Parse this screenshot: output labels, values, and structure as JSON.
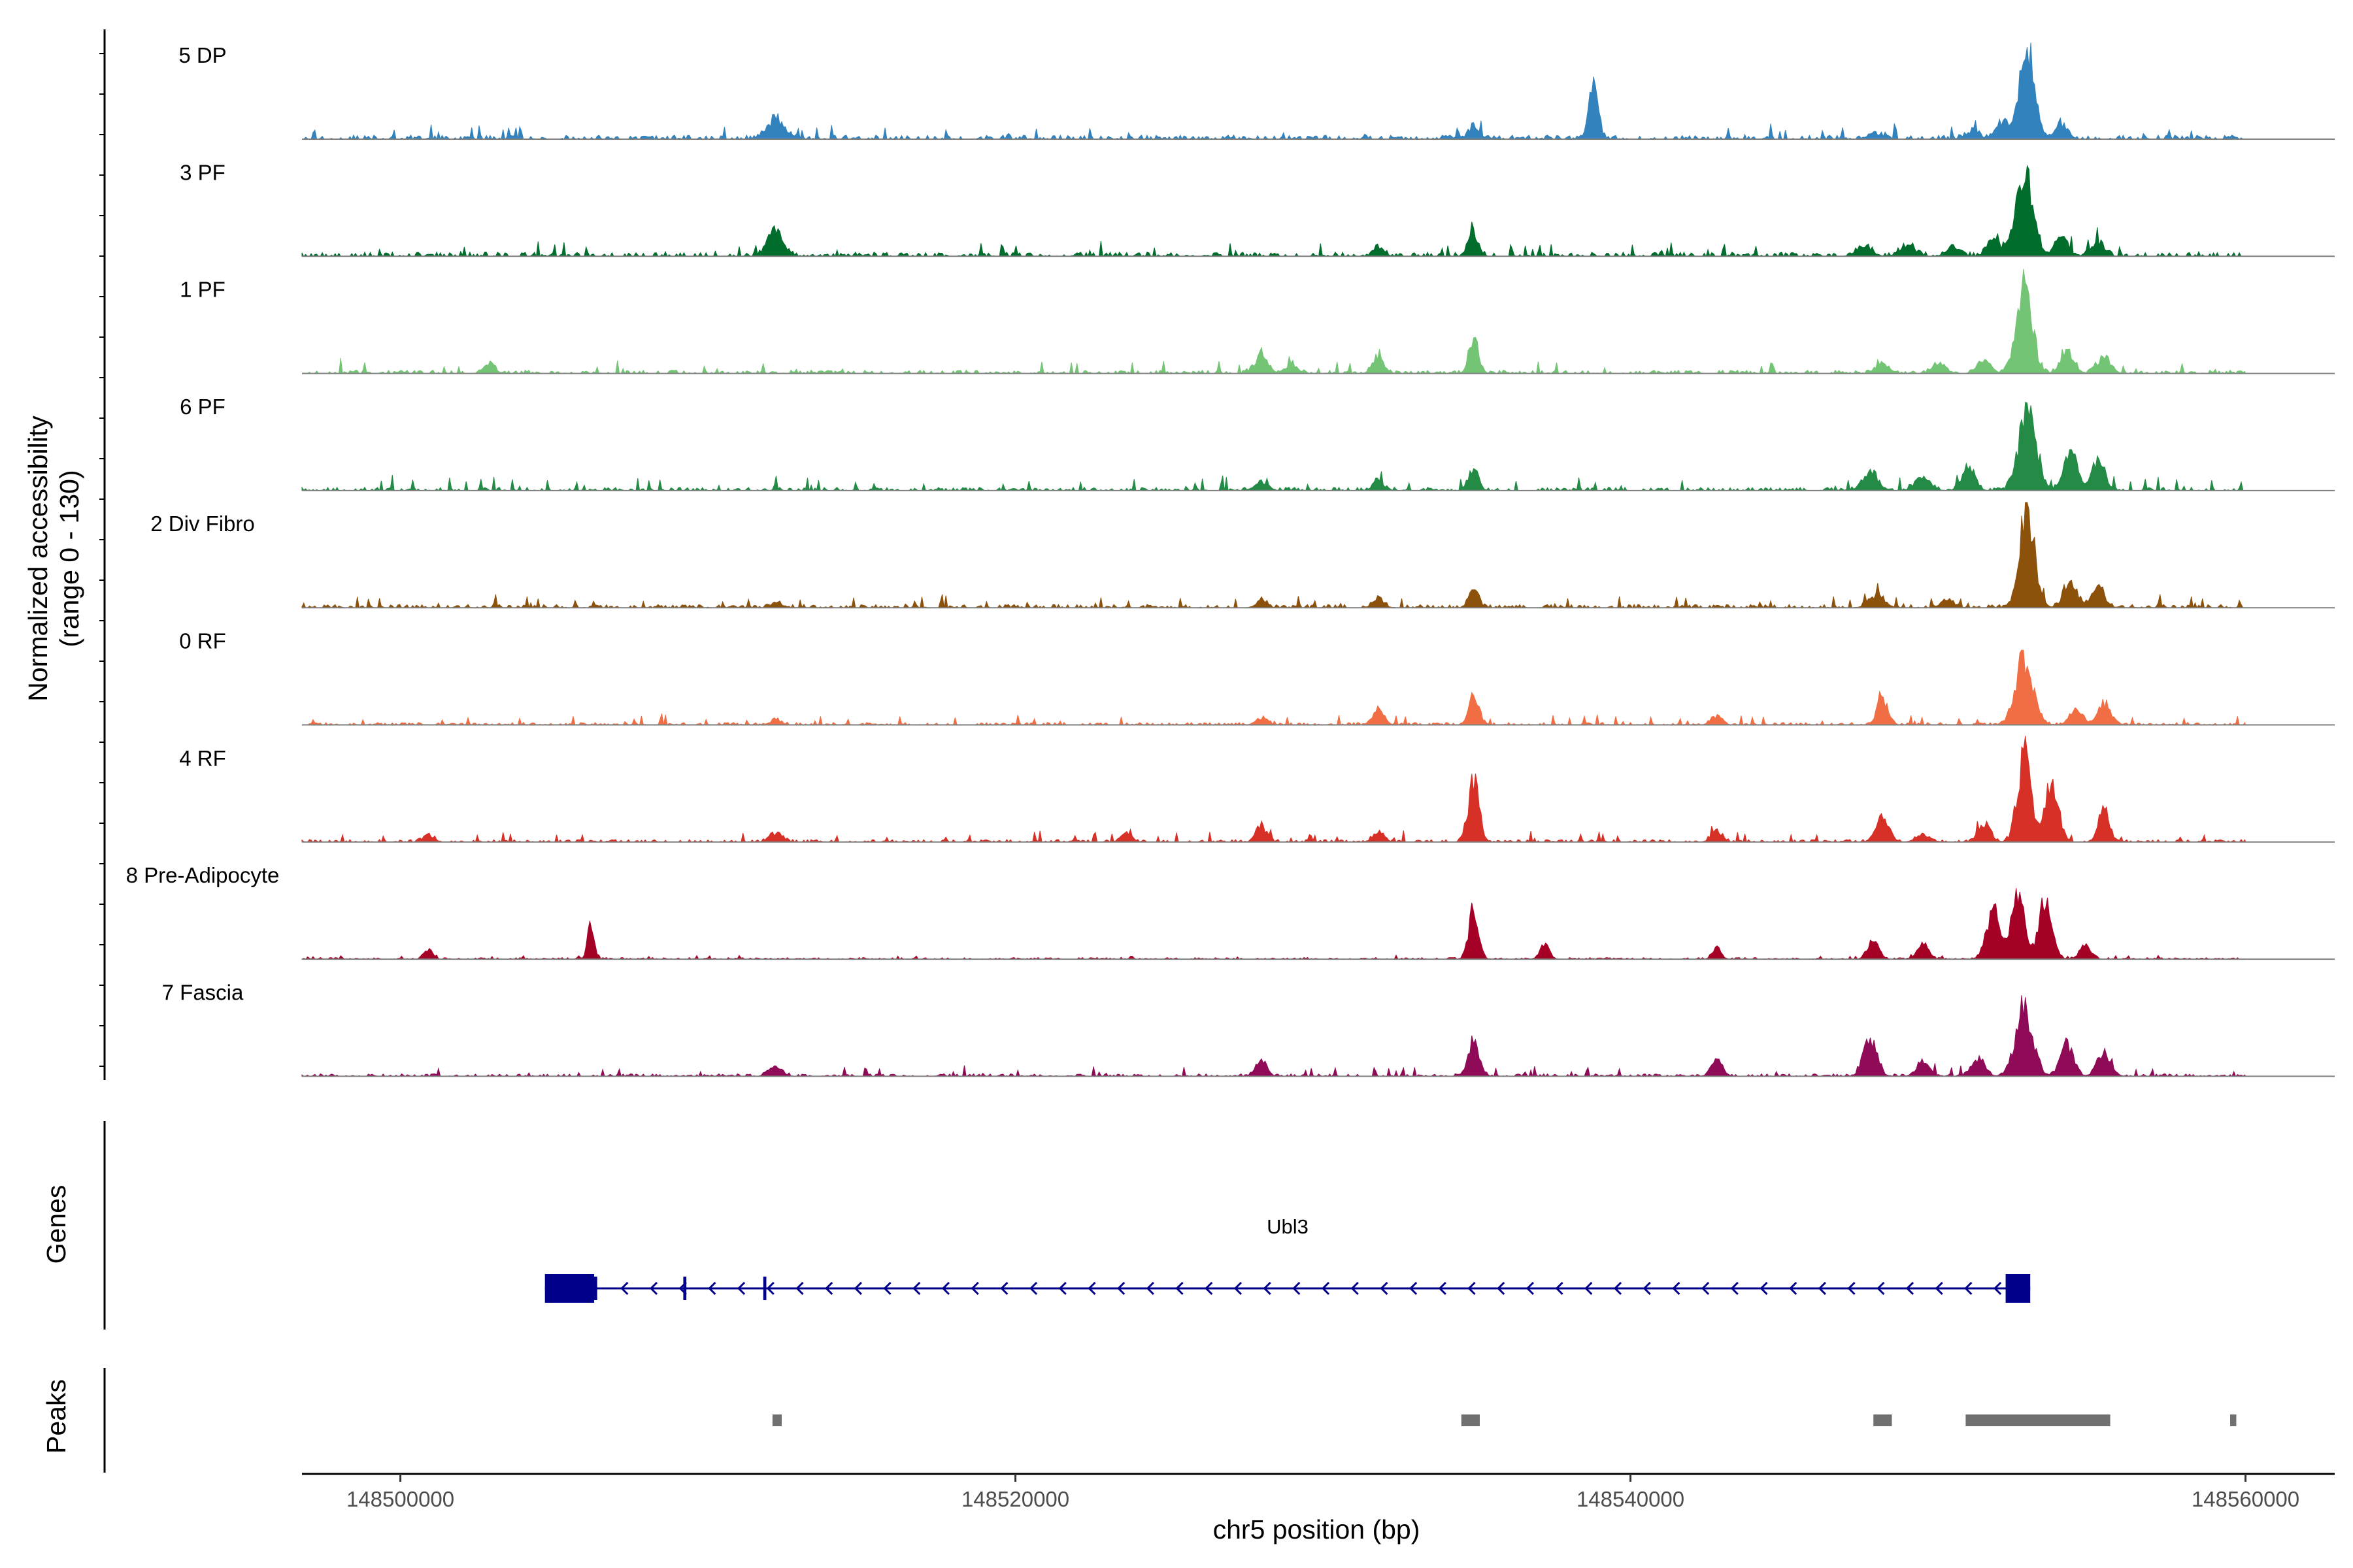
{
  "chart_data": {
    "type": "area",
    "title": "",
    "ylabel_line1": "Normalized accessibility",
    "ylabel_line2": "(range 0 - 130)",
    "yrange": [
      0,
      130
    ],
    "xlabel": "chr5 position (bp)",
    "xlim": [
      148496800,
      148562900
    ],
    "xticks": [
      148500000,
      148520000,
      148540000,
      148560000
    ],
    "xtick_labels": [
      "148500000",
      "148520000",
      "148540000",
      "148560000"
    ],
    "track_extent": [
      148496800,
      148560000
    ],
    "tracks": [
      {
        "name": "5 DP",
        "color": "#3182bd",
        "baseline": 8,
        "noise_amp": 5,
        "peaks": [
          [
            148512200,
            22,
            400
          ],
          [
            148534900,
            14,
            250
          ],
          [
            148538800,
            62,
            220
          ],
          [
            148547900,
            7,
            300
          ],
          [
            148551100,
            8,
            350
          ],
          [
            148552100,
            20,
            300
          ],
          [
            148552900,
            108,
            350
          ],
          [
            148554000,
            18,
            300
          ]
        ]
      },
      {
        "name": "3 PF",
        "color": "#006d2c",
        "baseline": 8,
        "noise_amp": 5,
        "peaks": [
          [
            148512200,
            28,
            350
          ],
          [
            148531800,
            10,
            250
          ],
          [
            148534900,
            30,
            220
          ],
          [
            148547600,
            12,
            350
          ],
          [
            148549000,
            12,
            350
          ],
          [
            148550500,
            10,
            300
          ],
          [
            148551800,
            18,
            300
          ],
          [
            148552800,
            100,
            400
          ],
          [
            148554000,
            22,
            300
          ],
          [
            148555200,
            16,
            300
          ]
        ]
      },
      {
        "name": "1 PF",
        "color": "#74c476",
        "baseline": 8,
        "noise_amp": 4,
        "peaks": [
          [
            148502900,
            12,
            250
          ],
          [
            148528000,
            22,
            300
          ],
          [
            148529000,
            10,
            250
          ],
          [
            148531800,
            20,
            250
          ],
          [
            148534900,
            42,
            220
          ],
          [
            148548200,
            12,
            300
          ],
          [
            148550000,
            10,
            300
          ],
          [
            148551500,
            16,
            300
          ],
          [
            148552800,
            110,
            350
          ],
          [
            148554200,
            28,
            300
          ],
          [
            148555400,
            20,
            300
          ]
        ]
      },
      {
        "name": "6 PF",
        "color": "#238b45",
        "baseline": 8,
        "noise_amp": 4,
        "peaks": [
          [
            148528000,
            10,
            300
          ],
          [
            148531800,
            12,
            250
          ],
          [
            148534900,
            26,
            220
          ],
          [
            148547800,
            22,
            350
          ],
          [
            148549500,
            16,
            350
          ],
          [
            148551000,
            25,
            300
          ],
          [
            148552900,
            90,
            400
          ],
          [
            148554300,
            50,
            300
          ],
          [
            148555200,
            38,
            300
          ]
        ]
      },
      {
        "name": "2 Div Fibro",
        "color": "#8c510a",
        "baseline": 7,
        "noise_amp": 4,
        "peaks": [
          [
            148512200,
            6,
            250
          ],
          [
            148528000,
            8,
            250
          ],
          [
            148531800,
            10,
            250
          ],
          [
            148534900,
            22,
            220
          ],
          [
            148548000,
            14,
            350
          ],
          [
            148550300,
            10,
            300
          ],
          [
            148552900,
            110,
            350
          ],
          [
            148554300,
            30,
            300
          ],
          [
            148555200,
            24,
            300
          ]
        ]
      },
      {
        "name": "0 RF",
        "color": "#f16d43",
        "baseline": 6,
        "noise_amp": 3,
        "peaks": [
          [
            148512200,
            6,
            250
          ],
          [
            148528000,
            8,
            250
          ],
          [
            148531800,
            20,
            250
          ],
          [
            148534900,
            40,
            220
          ],
          [
            148542800,
            10,
            250
          ],
          [
            148548200,
            30,
            250
          ],
          [
            148552800,
            80,
            400
          ],
          [
            148554500,
            16,
            300
          ],
          [
            148555400,
            24,
            300
          ]
        ]
      },
      {
        "name": "4 RF",
        "color": "#d73027",
        "baseline": 6,
        "noise_amp": 3,
        "peaks": [
          [
            148500900,
            8,
            250
          ],
          [
            148512200,
            10,
            300
          ],
          [
            148523600,
            10,
            250
          ],
          [
            148528000,
            18,
            250
          ],
          [
            148531800,
            12,
            250
          ],
          [
            148534900,
            72,
            250
          ],
          [
            148542800,
            14,
            250
          ],
          [
            148548200,
            30,
            300
          ],
          [
            148549500,
            10,
            300
          ],
          [
            148551500,
            20,
            300
          ],
          [
            148552800,
            105,
            300
          ],
          [
            148553700,
            72,
            300
          ],
          [
            148555400,
            40,
            250
          ]
        ]
      },
      {
        "name": "8 Pre-Adipocyte",
        "color": "#a50026",
        "baseline": 2,
        "noise_amp": 2,
        "peaks": [
          [
            148500900,
            12,
            200
          ],
          [
            148506200,
            45,
            150
          ],
          [
            148534900,
            60,
            220
          ],
          [
            148537200,
            18,
            200
          ],
          [
            148542800,
            14,
            200
          ],
          [
            148547900,
            22,
            250
          ],
          [
            148549500,
            20,
            250
          ],
          [
            148551800,
            60,
            300
          ],
          [
            148552600,
            75,
            300
          ],
          [
            148553500,
            70,
            300
          ],
          [
            148554800,
            18,
            250
          ]
        ]
      },
      {
        "name": "7 Fascia",
        "color": "#8f0a57",
        "baseline": 6,
        "noise_amp": 3,
        "peaks": [
          [
            148512200,
            12,
            300
          ],
          [
            148528000,
            18,
            250
          ],
          [
            148534900,
            42,
            250
          ],
          [
            148542800,
            22,
            250
          ],
          [
            148547800,
            45,
            300
          ],
          [
            148549500,
            16,
            300
          ],
          [
            148551300,
            22,
            300
          ],
          [
            148552800,
            80,
            400
          ],
          [
            148554200,
            40,
            300
          ],
          [
            148555400,
            30,
            300
          ]
        ]
      }
    ],
    "genes": {
      "title": "Genes",
      "label": "Ubl3",
      "color": "#00008b",
      "start": 148504700,
      "end": 148553000,
      "strand": "-",
      "exons": [
        [
          148504700,
          148506300
        ],
        [
          148506300,
          148506400
        ],
        [
          148509200,
          148509300
        ],
        [
          148511800,
          148511900
        ],
        [
          148552200,
          148553000
        ]
      ]
    },
    "peaks_track": {
      "title": "Peaks",
      "color": "#707070",
      "regions": [
        [
          148512100,
          148512400
        ],
        [
          148534500,
          148535100
        ],
        [
          148547900,
          148548500
        ],
        [
          148550900,
          148555600
        ],
        [
          148559500,
          148559700
        ]
      ]
    }
  }
}
